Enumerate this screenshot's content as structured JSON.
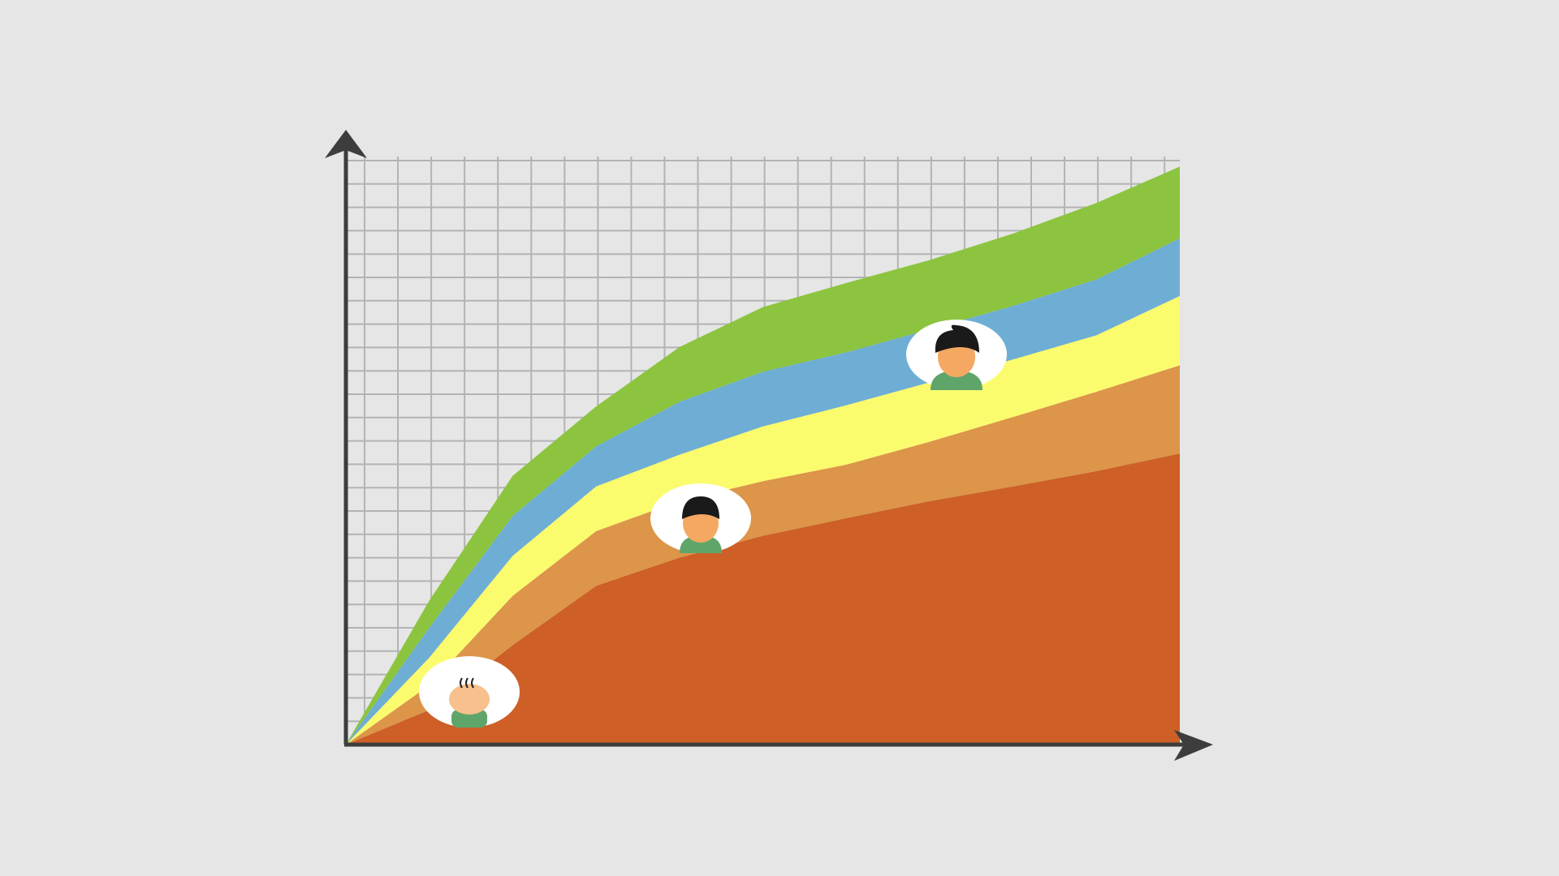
{
  "chart_data": {
    "type": "area",
    "stacked": true,
    "grid": true,
    "x": [
      0,
      10,
      20,
      30,
      40,
      50,
      60,
      70,
      80,
      90,
      100
    ],
    "xlim": [
      0,
      100
    ],
    "ylim": [
      0,
      100
    ],
    "series": [
      {
        "color": "#cd5f27",
        "values": [
          0,
          5.9,
          16.9,
          27.0,
          31.8,
          35.5,
          38.5,
          41.4,
          43.9,
          46.5,
          49.5
        ]
      },
      {
        "color": "#dc9549",
        "values": [
          0,
          4.2,
          8.4,
          9.3,
          9.6,
          9.3,
          9.1,
          10.1,
          11.8,
          13.5,
          15.0
        ]
      },
      {
        "color": "#fbfb6e",
        "values": [
          0,
          4.7,
          6.8,
          7.6,
          7.9,
          9.3,
          10.1,
          10.1,
          9.8,
          9.6,
          11.8
        ]
      },
      {
        "color": "#6eaed4",
        "values": [
          0,
          5.1,
          6.8,
          6.8,
          9.0,
          9.3,
          9.0,
          9.0,
          9.1,
          9.5,
          9.8
        ]
      },
      {
        "color": "#8cc43f",
        "values": [
          0,
          4.6,
          6.8,
          6.8,
          9.3,
          11.0,
          11.8,
          11.8,
          12.3,
          13.0,
          12.2
        ]
      }
    ]
  }
}
